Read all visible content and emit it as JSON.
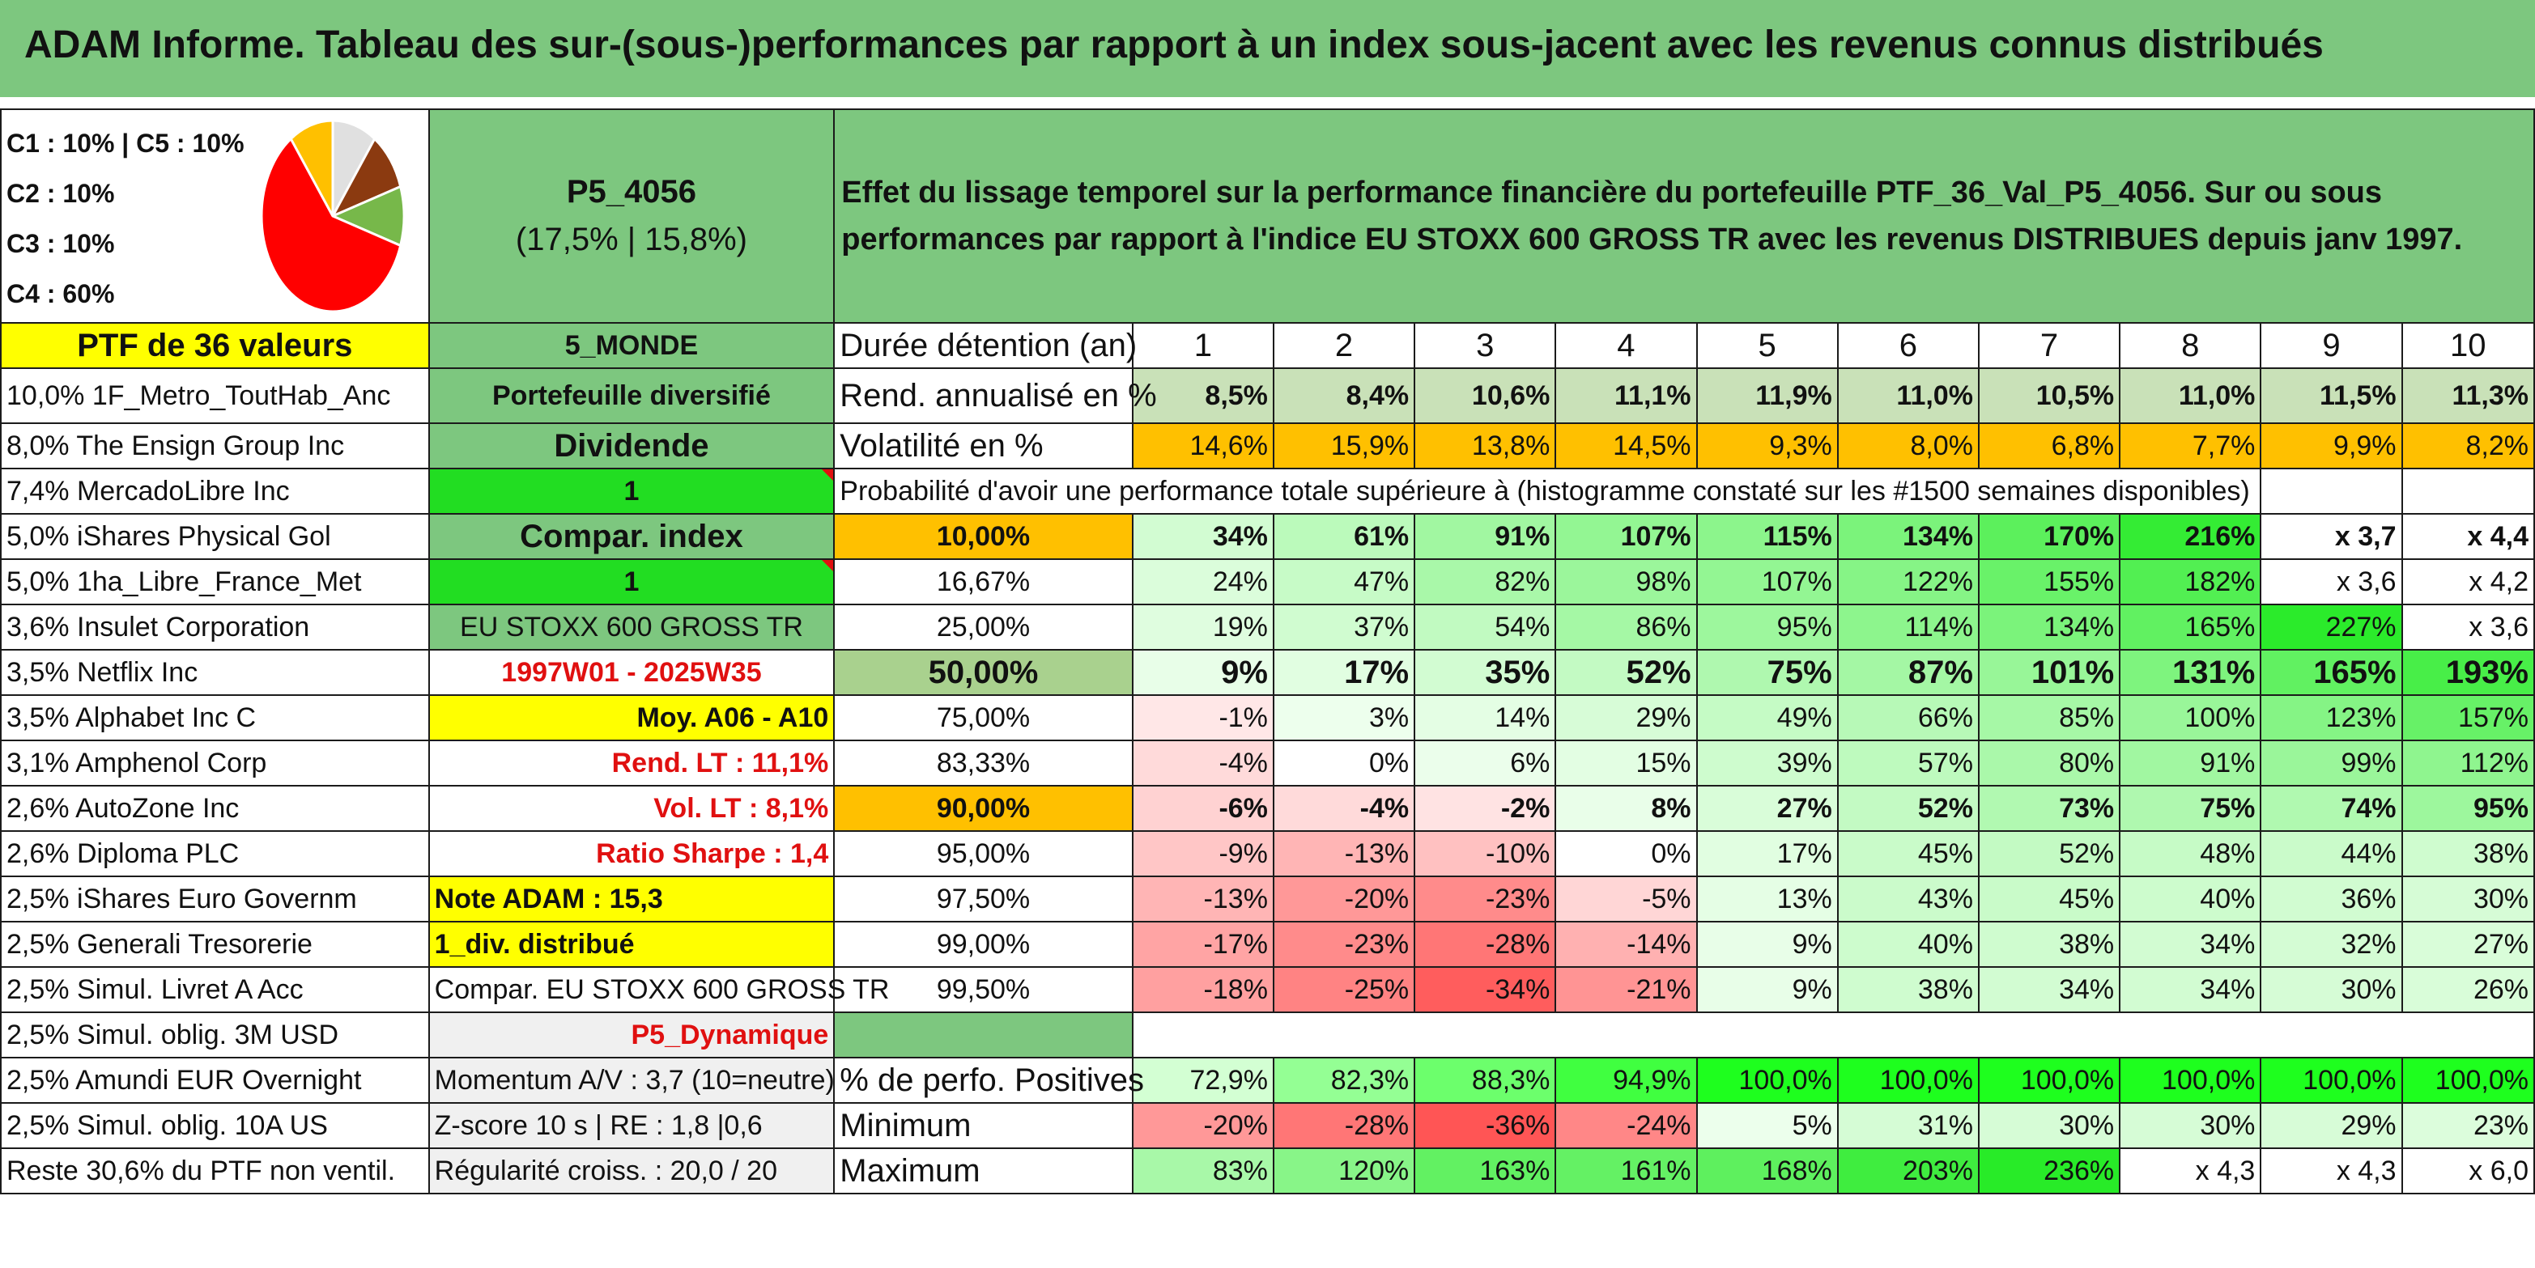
{
  "title": "ADAM Informe. Tableau des sur-(sous-)performances par rapport à un index sous-jacent avec les revenus connus distribués",
  "pie": {
    "legend": [
      "C1 : 10% | C5 : 10%",
      "C2 : 10%",
      "C3 : 10%",
      "C4 : 60%"
    ],
    "slices": [
      {
        "label": "C1",
        "value": 10,
        "color": "#e0e0e0"
      },
      {
        "label": "C2",
        "value": 10,
        "color": "#8b3a10"
      },
      {
        "label": "C3",
        "value": 10,
        "color": "#77b84a"
      },
      {
        "label": "C4",
        "value": 60,
        "color": "#ff0000"
      },
      {
        "label": "C5",
        "value": 10,
        "color": "#ffc000"
      }
    ]
  },
  "portfolio": {
    "name": "P5_4056",
    "stats": "(17,5% | 15,8%)",
    "description": "Effet du lissage temporel sur la performance financière du portefeuille PTF_36_Val_P5_4056. Sur ou sous performances par rapport à l'indice EU STOXX 600 GROSS TR avec les revenus DISTRIBUES depuis janv 1997.",
    "header_left": "PTF de 36 valeurs",
    "zone": "5_MONDE",
    "type": "Portefeuille diversifié",
    "style": "Dividende",
    "flag1": "1",
    "compar": "Compar. index",
    "flag2": "1",
    "index": "EU STOXX 600 GROSS TR",
    "period": "1997W01 - 2025W35",
    "moy": "Moy. A06 - A10",
    "rend_lt": "Rend. LT : 11,1%",
    "vol_lt": "Vol. LT : 8,1%",
    "sharpe": "Ratio Sharpe : 1,4",
    "note": "Note ADAM : 15,3",
    "div": "1_div. distribué",
    "compar_index": "Compar. EU STOXX 600 GROSS TR",
    "profile": "P5_Dynamique",
    "momentum": "Momentum A/V : 3,7 (10=neutre)",
    "zscore": "Z-score 10 s | RE : 1,8 |0,6",
    "regularite": "Régularité croiss. : 20,0 / 20"
  },
  "holdings": [
    "10,0% 1F_Metro_ToutHab_Anc",
    "8,0% The Ensign Group Inc",
    "7,4% MercadoLibre Inc",
    "5,0% iShares Physical Gol",
    "5,0% 1ha_Libre_France_Met",
    "3,6% Insulet Corporation",
    "3,5% Netflix Inc",
    "3,5% Alphabet Inc C",
    "3,1% Amphenol Corp",
    "2,6% AutoZone Inc",
    "2,6% Diploma PLC",
    "2,5% iShares Euro Governm",
    "2,5% Generali Tresorerie",
    "2,5% Simul. Livret A Acc",
    "2,5% Simul. oblig. 3M USD",
    "2,5% Amundi EUR Overnight",
    "2,5% Simul. oblig. 10A US",
    "Reste 30,6% du PTF non ventil."
  ],
  "perf": {
    "duration_label": "Durée détention (an)",
    "years": [
      "1",
      "2",
      "3",
      "4",
      "5",
      "6",
      "7",
      "8",
      "9",
      "10"
    ],
    "rend_label": "Rend. annualisé en %",
    "rend": [
      "8,5%",
      "8,4%",
      "10,6%",
      "11,1%",
      "11,9%",
      "11,0%",
      "10,5%",
      "11,0%",
      "11,5%",
      "11,3%"
    ],
    "vol_label": "Volatilité en %",
    "vol": [
      "14,6%",
      "15,9%",
      "13,8%",
      "14,5%",
      "9,3%",
      "8,0%",
      "6,8%",
      "7,7%",
      "9,9%",
      "8,2%"
    ],
    "proba_label": "Probabilité d'avoir une performance totale supérieure à (histogramme constaté sur les #1500 semaines disponibles)",
    "quantiles": [
      {
        "p": "10,00%",
        "v": [
          "34%",
          "61%",
          "91%",
          "107%",
          "115%",
          "134%",
          "170%",
          "216%",
          "x 3,7",
          "x 4,4"
        ]
      },
      {
        "p": "16,67%",
        "v": [
          "24%",
          "47%",
          "82%",
          "98%",
          "107%",
          "122%",
          "155%",
          "182%",
          "x 3,6",
          "x 4,2"
        ]
      },
      {
        "p": "25,00%",
        "v": [
          "19%",
          "37%",
          "54%",
          "86%",
          "95%",
          "114%",
          "134%",
          "165%",
          "227%",
          "x 3,6"
        ]
      },
      {
        "p": "50,00%",
        "v": [
          "9%",
          "17%",
          "35%",
          "52%",
          "75%",
          "87%",
          "101%",
          "131%",
          "165%",
          "193%"
        ]
      },
      {
        "p": "75,00%",
        "v": [
          "-1%",
          "3%",
          "14%",
          "29%",
          "49%",
          "66%",
          "85%",
          "100%",
          "123%",
          "157%"
        ]
      },
      {
        "p": "83,33%",
        "v": [
          "-4%",
          "0%",
          "6%",
          "15%",
          "39%",
          "57%",
          "80%",
          "91%",
          "99%",
          "112%"
        ]
      },
      {
        "p": "90,00%",
        "v": [
          "-6%",
          "-4%",
          "-2%",
          "8%",
          "27%",
          "52%",
          "73%",
          "75%",
          "74%",
          "95%"
        ]
      },
      {
        "p": "95,00%",
        "v": [
          "-9%",
          "-13%",
          "-10%",
          "0%",
          "17%",
          "45%",
          "52%",
          "48%",
          "44%",
          "38%"
        ]
      },
      {
        "p": "97,50%",
        "v": [
          "-13%",
          "-20%",
          "-23%",
          "-5%",
          "13%",
          "43%",
          "45%",
          "40%",
          "36%",
          "30%"
        ]
      },
      {
        "p": "99,00%",
        "v": [
          "-17%",
          "-23%",
          "-28%",
          "-14%",
          "9%",
          "40%",
          "38%",
          "34%",
          "32%",
          "27%"
        ]
      },
      {
        "p": "99,50%",
        "v": [
          "-18%",
          "-25%",
          "-34%",
          "-21%",
          "9%",
          "38%",
          "34%",
          "34%",
          "30%",
          "26%"
        ]
      }
    ],
    "pos_label": "% de perfo. Positives",
    "pos": [
      "72,9%",
      "82,3%",
      "88,3%",
      "94,9%",
      "100,0%",
      "100,0%",
      "100,0%",
      "100,0%",
      "100,0%",
      "100,0%"
    ],
    "min_label": "Minimum",
    "min": [
      "-20%",
      "-28%",
      "-36%",
      "-24%",
      "5%",
      "31%",
      "30%",
      "30%",
      "29%",
      "23%"
    ],
    "max_label": "Maximum",
    "max": [
      "83%",
      "120%",
      "163%",
      "161%",
      "168%",
      "203%",
      "236%",
      "x 4,3",
      "x 4,3",
      "x 6,0"
    ]
  }
}
